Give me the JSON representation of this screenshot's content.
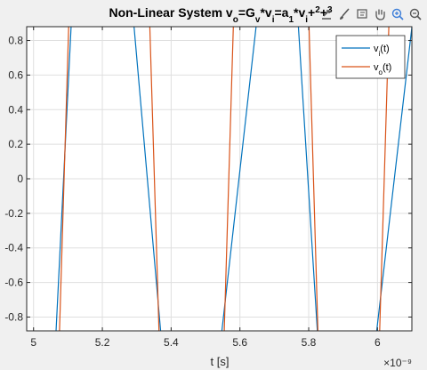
{
  "chart_data": {
    "type": "line",
    "title_parts": [
      {
        "t": "Non-Linear System v",
        "k": "n"
      },
      {
        "t": "o",
        "k": "sub"
      },
      {
        "t": "=G",
        "k": "n"
      },
      {
        "t": "v",
        "k": "sub"
      },
      {
        "t": "*v",
        "k": "n"
      },
      {
        "t": "i",
        "k": "sub"
      },
      {
        "t": "=a",
        "k": "n"
      },
      {
        "t": "1",
        "k": "sub"
      },
      {
        "t": "*v",
        "k": "n"
      },
      {
        "t": "i",
        "k": "sub"
      },
      {
        "t": "+",
        "k": "n"
      },
      {
        "t": "2",
        "k": "sup"
      },
      {
        "t": "+",
        "k": "n"
      },
      {
        "t": "3",
        "k": "sup"
      }
    ],
    "xlabel": "t [s]",
    "x_exponent": "×10⁻⁹",
    "xlim": [
      4.98,
      6.1
    ],
    "ylim": [
      -0.88,
      0.88
    ],
    "xticks": [
      5,
      5.2,
      5.4,
      5.6,
      5.8,
      6
    ],
    "xtick_labels": [
      "5",
      "5.2",
      "5.4",
      "5.6",
      "5.8",
      "6"
    ],
    "yticks": [
      -0.8,
      -0.6,
      -0.4,
      -0.2,
      0,
      0.2,
      0.4,
      0.6,
      0.8
    ],
    "ytick_labels": [
      "-0.8",
      "-0.6",
      "-0.4",
      "-0.2",
      "0",
      "0.2",
      "0.4",
      "0.6",
      "0.8"
    ],
    "grid": true,
    "legend_position": "top-right",
    "series": [
      {
        "name_base": "v",
        "name_sub": "i",
        "name_tail": "(t)",
        "color": "#0072BD",
        "x": [
          5.06,
          5.111,
          5.289,
          5.379,
          5.535,
          5.651,
          5.768,
          5.832,
          5.985,
          6.11
        ],
        "y": [
          -1.1,
          0.95,
          0.95,
          -1.1,
          -1.1,
          0.95,
          0.95,
          -1.1,
          -1.1,
          1.05
        ]
      },
      {
        "name_base": "v",
        "name_sub": "o",
        "name_tail": "(t)",
        "color": "#D95319",
        "x": [
          5.072,
          5.103,
          5.337,
          5.368,
          5.551,
          5.582,
          5.8,
          5.83,
          6.003,
          6.034
        ],
        "y": [
          -1.1,
          0.95,
          0.95,
          -1.1,
          -1.1,
          0.95,
          0.95,
          -1.1,
          -1.1,
          0.95
        ]
      }
    ]
  },
  "toolbar": {
    "buttons": [
      {
        "name": "export-icon"
      },
      {
        "name": "brush-icon"
      },
      {
        "name": "datatip-icon"
      },
      {
        "name": "pan-icon"
      },
      {
        "name": "zoom-in-icon"
      },
      {
        "name": "zoom-out-icon"
      },
      {
        "name": "home-icon"
      }
    ]
  }
}
